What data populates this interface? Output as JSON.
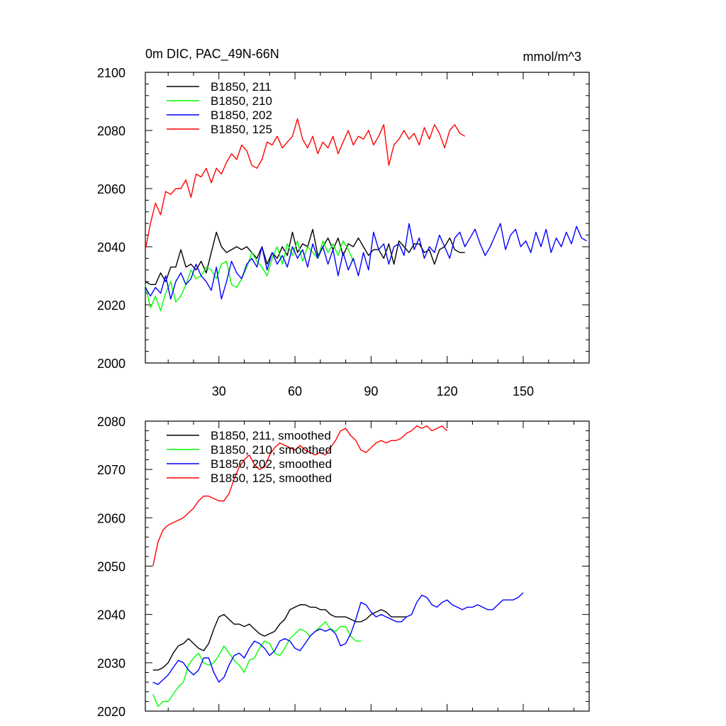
{
  "chart_data": [
    {
      "type": "line",
      "title": "0m DIC, PAC_49N-66N",
      "units": "mmol/m^3",
      "xlim": [
        1,
        176
      ],
      "ylim": [
        2000,
        2100
      ],
      "xticks": [
        30,
        60,
        90,
        120,
        150
      ],
      "yticks": [
        2000,
        2020,
        2040,
        2060,
        2080,
        2100
      ],
      "grid": false,
      "legend_position": "top-left",
      "series": [
        {
          "name": "B1850, 211",
          "color": "#000000",
          "x_start": 1,
          "x_step": 2,
          "values": [
            2028,
            2027,
            2027,
            2031,
            2028,
            2033,
            2033,
            2039,
            2033,
            2034,
            2032,
            2035,
            2031,
            2038,
            2045,
            2040,
            2038,
            2039,
            2040,
            2039,
            2040,
            2038,
            2036,
            2040,
            2034,
            2038,
            2036,
            2040,
            2037,
            2045,
            2038,
            2041,
            2040,
            2046,
            2037,
            2040,
            2043,
            2039,
            2043,
            2037,
            2041,
            2040,
            2043,
            2040,
            2037,
            2039,
            2039,
            2036,
            2041,
            2034,
            2042,
            2040,
            2038,
            2041,
            2041,
            2038,
            2039,
            2034,
            2039,
            2040,
            2043,
            2039,
            2038,
            2038
          ]
        },
        {
          "name": "B1850, 210",
          "color": "#00ff00",
          "x_start": 1,
          "x_step": 2,
          "values": [
            2027,
            2019,
            2023,
            2018,
            2024,
            2028,
            2021,
            2023,
            2027,
            2032,
            2029,
            2030,
            2033,
            2032,
            2029,
            2034,
            2035,
            2027,
            2026,
            2029,
            2033,
            2038,
            2035,
            2033,
            2030,
            2036,
            2040,
            2034,
            2041,
            2037,
            2042,
            2035,
            2040,
            2038,
            2036,
            2042,
            2038,
            2041,
            2037,
            2042,
            2039,
            2035
          ]
        },
        {
          "name": "B1850, 202",
          "color": "#0000ff",
          "x_start": 1,
          "x_step": 2,
          "values": [
            2026,
            2023,
            2026,
            2024,
            2030,
            2022,
            2028,
            2031,
            2027,
            2029,
            2034,
            2030,
            2028,
            2025,
            2033,
            2022,
            2028,
            2035,
            2031,
            2029,
            2034,
            2036,
            2033,
            2040,
            2032,
            2038,
            2034,
            2037,
            2033,
            2040,
            2036,
            2039,
            2033,
            2041,
            2036,
            2040,
            2034,
            2039,
            2030,
            2038,
            2032,
            2036,
            2030,
            2038,
            2032,
            2045,
            2039,
            2041,
            2034,
            2040,
            2041,
            2037,
            2048,
            2039,
            2043,
            2036,
            2040,
            2038,
            2044,
            2040,
            2036,
            2043,
            2045,
            2040,
            2043,
            2046,
            2041,
            2037,
            2040,
            2044,
            2048,
            2039,
            2044,
            2046,
            2040,
            2042,
            2038,
            2045,
            2040,
            2046,
            2038,
            2043,
            2040,
            2045,
            2041,
            2047,
            2043,
            2042
          ]
        },
        {
          "name": "B1850, 125",
          "color": "#ff0000",
          "x_start": 1,
          "x_step": 2,
          "values": [
            2039,
            2048,
            2055,
            2051,
            2059,
            2058,
            2060,
            2060,
            2063,
            2057,
            2065,
            2064,
            2067,
            2062,
            2067,
            2065,
            2069,
            2072,
            2070,
            2075,
            2073,
            2068,
            2067,
            2070,
            2076,
            2075,
            2078,
            2074,
            2076,
            2078,
            2084,
            2077,
            2074,
            2078,
            2072,
            2076,
            2074,
            2078,
            2072,
            2076,
            2080,
            2075,
            2078,
            2077,
            2080,
            2075,
            2078,
            2082,
            2068,
            2075,
            2077,
            2080,
            2077,
            2079,
            2075,
            2081,
            2077,
            2082,
            2079,
            2074,
            2080,
            2082,
            2079,
            2078
          ]
        }
      ]
    },
    {
      "type": "line",
      "ylim": [
        2020,
        2080
      ],
      "yticks": [
        2020,
        2030,
        2040,
        2050,
        2060,
        2070,
        2080
      ],
      "xlim": [
        1,
        176
      ],
      "grid": false,
      "legend_position": "top-left",
      "series": [
        {
          "name": "B1850, 211, smoothed",
          "color": "#000000",
          "x_start": 4,
          "x_step": 2,
          "values": [
            2028.5,
            2028.5,
            2029,
            2030,
            2032,
            2033.5,
            2034,
            2035,
            2034,
            2033,
            2032.5,
            2034,
            2037,
            2039.5,
            2040,
            2039,
            2038,
            2038,
            2037.5,
            2038,
            2037,
            2036,
            2035.5,
            2036,
            2036.5,
            2038,
            2039,
            2041,
            2041.5,
            2042,
            2042,
            2041.5,
            2041.5,
            2041,
            2041,
            2040,
            2039.5,
            2039.5,
            2039.5,
            2039,
            2038.5,
            2038.5,
            2039,
            2040,
            2040.5,
            2041,
            2040.5,
            2039.5,
            2039.5,
            2039.5,
            2039.5
          ]
        },
        {
          "name": "B1850, 210, smoothed",
          "color": "#00ff00",
          "x_start": 4,
          "x_step": 2,
          "values": [
            2023.5,
            2021,
            2022,
            2022,
            2023.5,
            2025,
            2026,
            2029.5,
            2031,
            2032,
            2030,
            2029.5,
            2030,
            2031.5,
            2033.5,
            2032,
            2030.5,
            2029.5,
            2028,
            2030.5,
            2031,
            2033,
            2034.5,
            2034,
            2032,
            2031.5,
            2033,
            2035,
            2036,
            2037,
            2036.5,
            2035.5,
            2036.5,
            2037.5,
            2038.5,
            2037,
            2036.5,
            2037.5,
            2037.5,
            2035.5,
            2034.5,
            2034.5
          ]
        },
        {
          "name": "B1850, 202, smoothed",
          "color": "#0000ff",
          "x_start": 4,
          "x_step": 2,
          "values": [
            2026,
            2025.5,
            2026.5,
            2027.5,
            2029,
            2030.5,
            2030,
            2028.5,
            2027.5,
            2028.5,
            2031,
            2031,
            2028,
            2026,
            2027,
            2029.5,
            2031.5,
            2032,
            2031,
            2033,
            2034.5,
            2034,
            2033,
            2031.5,
            2032.5,
            2034.5,
            2035,
            2034.5,
            2033,
            2032.5,
            2034,
            2035.5,
            2036.5,
            2037,
            2036.5,
            2037,
            2036,
            2033.5,
            2034,
            2036,
            2039,
            2042.5,
            2042,
            2040.5,
            2039.5,
            2040,
            2039.5,
            2039,
            2038.5,
            2038.5,
            2039.5,
            2040,
            2042.5,
            2044,
            2043.5,
            2042,
            2041.5,
            2042.5,
            2043,
            2042,
            2041.5,
            2041,
            2041.5,
            2041.5,
            2042,
            2041.5,
            2041,
            2041,
            2042,
            2043,
            2043,
            2043,
            2043.5,
            2044.5
          ]
        },
        {
          "name": "B1850, 125, smoothed",
          "color": "#ff0000",
          "x_start": 4,
          "x_step": 2,
          "values": [
            2050,
            2055,
            2057.5,
            2058.5,
            2059,
            2059.5,
            2060,
            2061,
            2062,
            2063.5,
            2064.5,
            2064.5,
            2064,
            2063.5,
            2063.5,
            2065,
            2068,
            2070.5,
            2072,
            2073,
            2071,
            2070,
            2070.5,
            2073,
            2074.5,
            2075.5,
            2075,
            2074.5,
            2074,
            2075,
            2074,
            2073.5,
            2073,
            2073.5,
            2073,
            2074.5,
            2076,
            2078,
            2078.5,
            2077,
            2076,
            2074,
            2073.5,
            2074.5,
            2075.5,
            2076,
            2075.5,
            2076,
            2076,
            2076.5,
            2077.5,
            2078,
            2079,
            2078.5,
            2079,
            2078,
            2078.5,
            2079,
            2078
          ]
        }
      ]
    }
  ]
}
